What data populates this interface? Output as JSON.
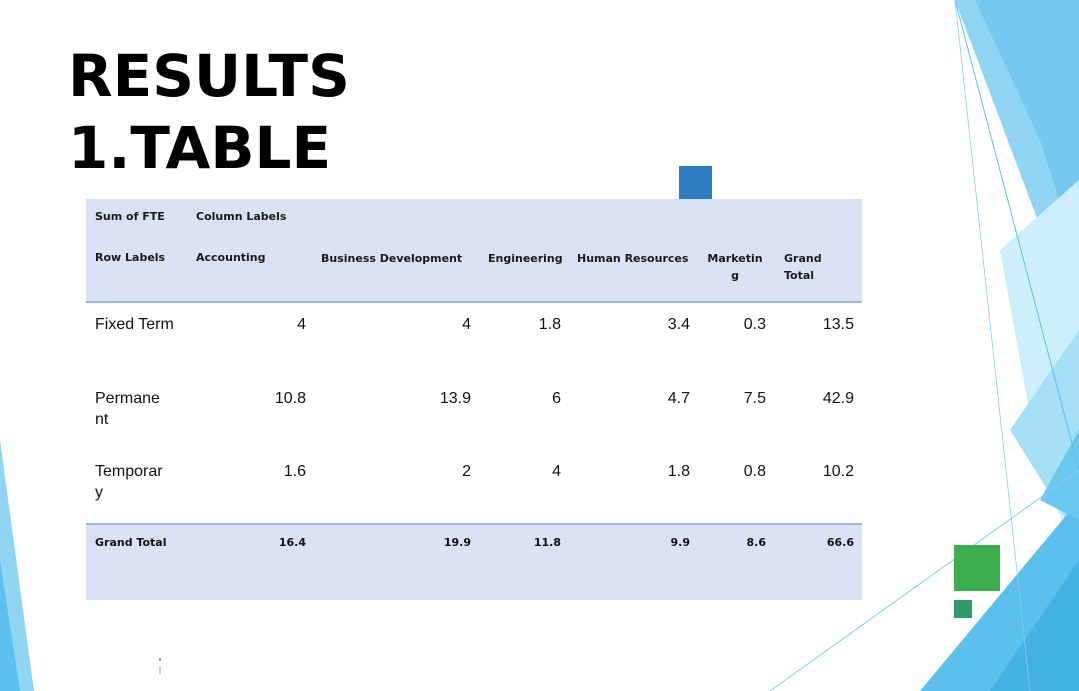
{
  "title_line1": "RESULTS",
  "title_line2": "1.TABLE",
  "pivot": {
    "sum_label": "Sum of FTE",
    "column_labels": "Column Labels",
    "row_labels": "Row Labels",
    "columns": [
      "Accounting",
      "Business Development",
      "Engineering",
      "Human Resources",
      "Marketin g",
      "Grand Total"
    ],
    "rows": [
      {
        "label": "Fixed Term",
        "values": [
          "4",
          "4",
          "1.8",
          "3.4",
          "0.3",
          "13.5"
        ]
      },
      {
        "label": "Permane nt",
        "values": [
          "10.8",
          "13.9",
          "6",
          "4.7",
          "7.5",
          "42.9"
        ]
      },
      {
        "label": "Temporar y",
        "values": [
          "1.6",
          "2",
          "4",
          "1.8",
          "0.8",
          "10.2"
        ]
      }
    ],
    "grand_total": {
      "label": "Grand Total",
      "values": [
        "16.4",
        "19.9",
        "11.8",
        "9.9",
        "8.6",
        "66.6"
      ]
    }
  },
  "colors": {
    "band": "#d9e1f2",
    "accent_blue": "#2e7ec4",
    "accent_green": "#3daf4e",
    "accent_teal": "#2f9a6a",
    "deco_light_blue": "#5bc0eb"
  }
}
